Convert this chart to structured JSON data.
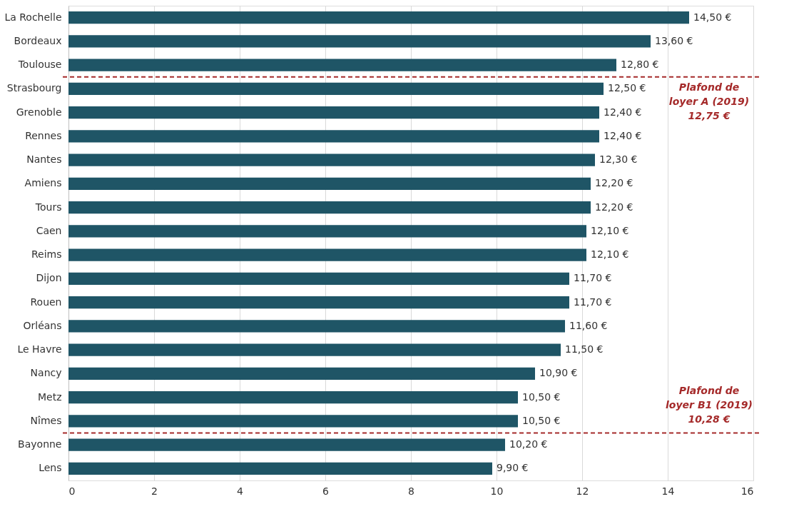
{
  "chart_data": {
    "type": "bar",
    "orientation": "horizontal",
    "categories": [
      "La Rochelle",
      "Bordeaux",
      "Toulouse",
      "Strasbourg",
      "Grenoble",
      "Rennes",
      "Nantes",
      "Amiens",
      "Tours",
      "Caen",
      "Reims",
      "Dijon",
      "Rouen",
      "Orléans",
      "Le Havre",
      "Nancy",
      "Metz",
      "Nîmes",
      "Bayonne",
      "Lens"
    ],
    "values": [
      14.5,
      13.6,
      12.8,
      12.5,
      12.4,
      12.4,
      12.3,
      12.2,
      12.2,
      12.1,
      12.1,
      11.7,
      11.7,
      11.6,
      11.5,
      10.9,
      10.5,
      10.5,
      10.2,
      9.9
    ],
    "value_labels": [
      "14,50 €",
      "13,60 €",
      "12,80 €",
      "12,50 €",
      "12,40 €",
      "12,40 €",
      "12,30 €",
      "12,20 €",
      "12,20 €",
      "12,10 €",
      "12,10 €",
      "11,70 €",
      "11,70 €",
      "11,60 €",
      "11,50 €",
      "10,90 €",
      "10,50 €",
      "10,50 €",
      "10,20 €",
      "9,90 €"
    ],
    "color": "#1f5566",
    "xlim": [
      0,
      16
    ],
    "xticks": [
      0,
      2,
      4,
      6,
      8,
      10,
      12,
      14,
      16
    ],
    "grid": "x",
    "ref_lines": [
      {
        "axis": "y",
        "value": "Toulouse",
        "label": "Plafond de\nloyer A (2019)\n12,75 €",
        "color": "#a52a2a",
        "line_style": "dashed"
      },
      {
        "axis": "y",
        "value": "Nîmes",
        "label": "Plafond de\nloyer B1 (2019)\n10,28 €",
        "color": "#a52a2a",
        "line_style": "dashed"
      }
    ]
  }
}
